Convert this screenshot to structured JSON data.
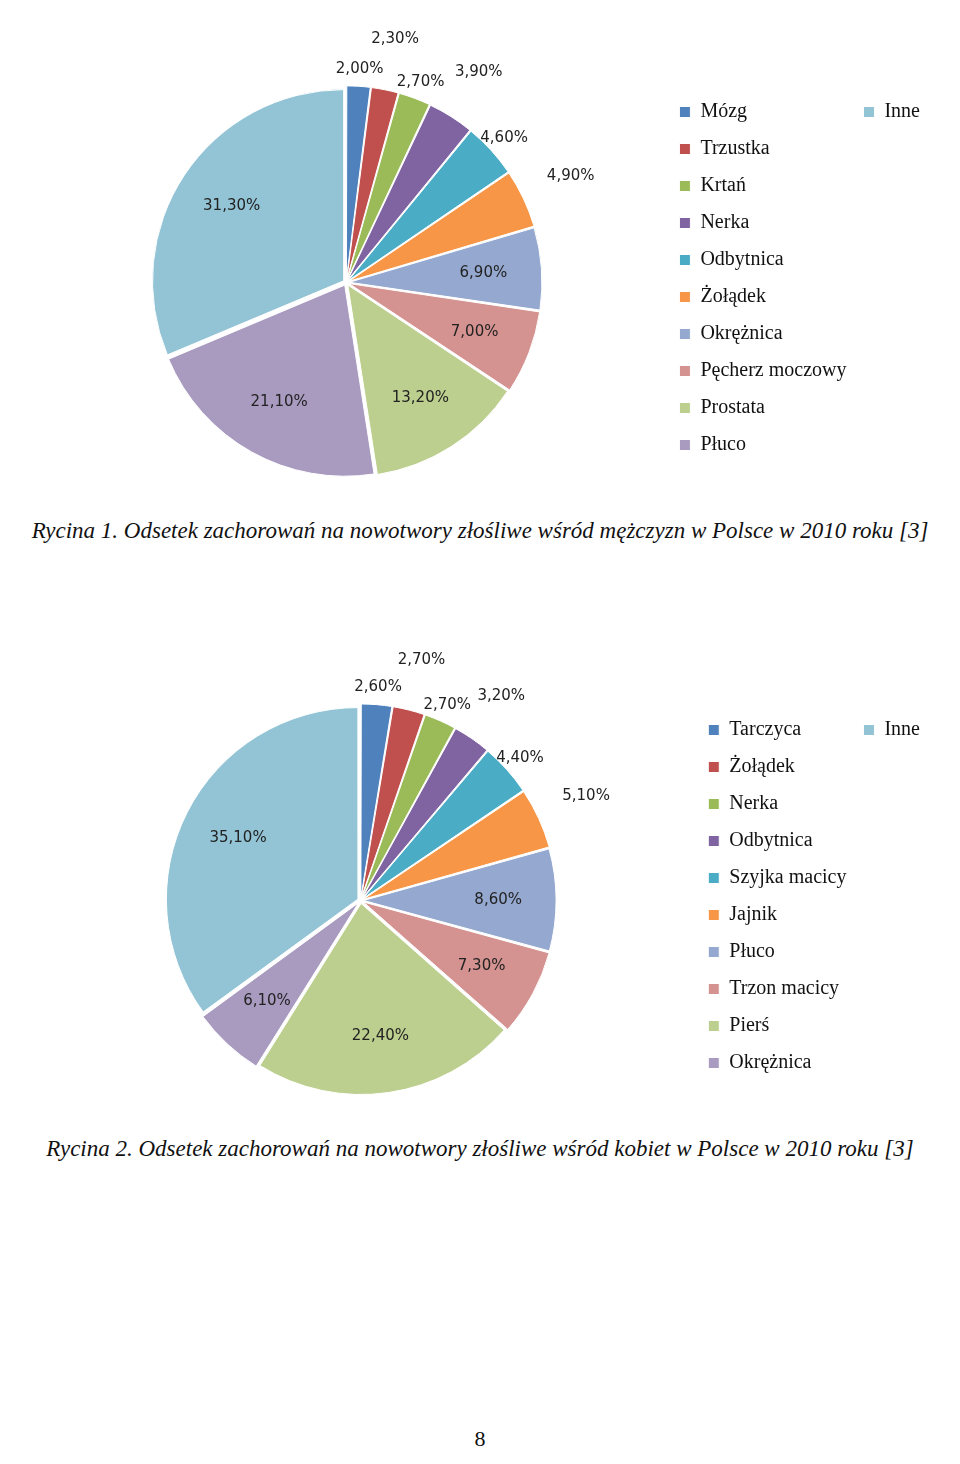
{
  "chart_data": [
    {
      "type": "pie",
      "title": "Rycina 1. Odsetek zachorowań na nowotwory złośliwe wśród mężczyzn w Polsce w 2010 roku [3]",
      "categories": [
        "Mózg",
        "Trzustka",
        "Krtań",
        "Nerka",
        "Odbytnica",
        "Żołądek",
        "Okrężnica",
        "Pęcherz moczowy",
        "Prostata",
        "Płuco",
        "Inne"
      ],
      "values": [
        2.0,
        2.3,
        2.7,
        3.9,
        4.6,
        4.9,
        6.9,
        7.0,
        13.2,
        21.1,
        31.3
      ],
      "value_labels": [
        "2,00%",
        "2,30%",
        "2,70%",
        "3,90%",
        "4,60%",
        "4,90%",
        "6,90%",
        "7,00%",
        "13,20%",
        "21,10%",
        "31,30%"
      ],
      "colors": [
        "#4f81bd",
        "#c0504d",
        "#9bbb59",
        "#8064a2",
        "#4bacc6",
        "#f79646",
        "#95a9d0",
        "#d49390",
        "#bccf8e",
        "#a99bc0",
        "#92c4d5"
      ],
      "data_labels": true,
      "legend": "right"
    },
    {
      "type": "pie",
      "title": "Rycina 2. Odsetek zachorowań na nowotwory złośliwe wśród kobiet w Polsce w 2010 roku [3]",
      "categories": [
        "Tarczyca",
        "Żołądek",
        "Nerka",
        "Odbytnica",
        "Szyjka macicy",
        "Jajnik",
        "Płuco",
        "Trzon macicy",
        "Pierś",
        "Okrężnica",
        "Inne"
      ],
      "values": [
        2.6,
        2.7,
        2.7,
        3.2,
        4.4,
        5.1,
        8.6,
        7.3,
        22.4,
        6.1,
        35.1
      ],
      "value_labels": [
        "2,60%",
        "2,70%",
        "2,70%",
        "3,20%",
        "4,40%",
        "5,10%",
        "8,60%",
        "7,30%",
        "22,40%",
        "6,10%",
        "35,10%"
      ],
      "colors": [
        "#4f81bd",
        "#c0504d",
        "#9bbb59",
        "#8064a2",
        "#4bacc6",
        "#f79646",
        "#95a9d0",
        "#d49390",
        "#bccf8e",
        "#a99bc0",
        "#92c4d5"
      ],
      "data_labels": true,
      "legend": "right"
    }
  ],
  "page_number": "8"
}
